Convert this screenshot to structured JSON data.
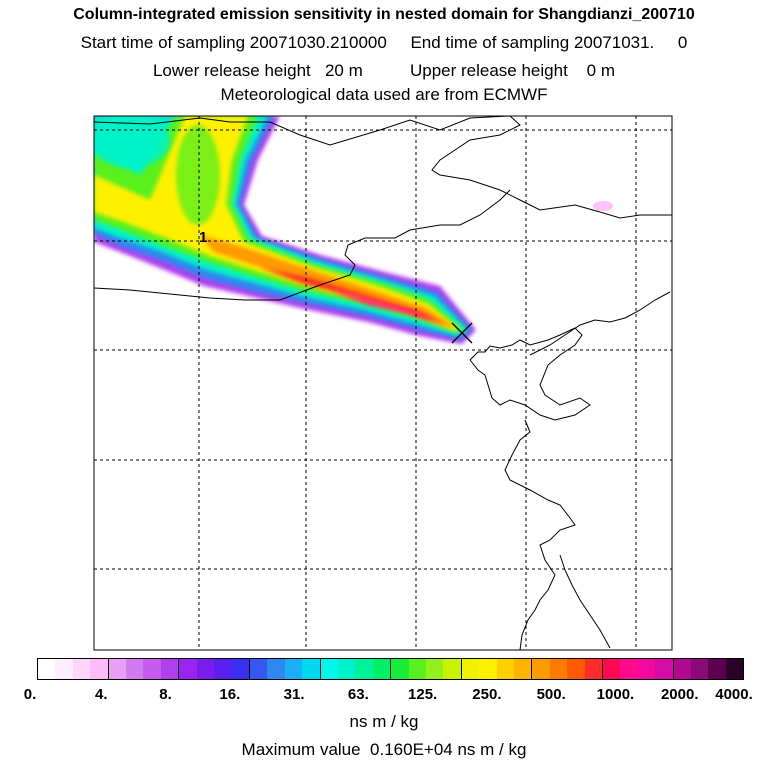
{
  "title": {
    "line1": "Column-integrated emission sensitivity in nested domain for Shangdianzi_200710",
    "line2": "Start time of sampling 20071030.210000     End time of sampling 20071031.     0",
    "line3": "Lower release height   20 m          Upper release height    0 m",
    "line4": "Meteorological data used are from ECMWF"
  },
  "map": {
    "day_marker": "1",
    "release_site_marker": "X"
  },
  "colorbar": {
    "ticks": [
      "0.",
      "4.",
      "8.",
      "16.",
      "31.",
      "63.",
      "125.",
      "250.",
      "500.",
      "1000.",
      "2000.",
      "4000."
    ],
    "colors": [
      "#ffffff",
      "#ffeeff",
      "#ffd6fc",
      "#ffbbf8",
      "#e7a0f3",
      "#d27af0",
      "#c85cef",
      "#b040ee",
      "#9a23f0",
      "#7a1cee",
      "#5a1ef0",
      "#3a2ff0",
      "#3458f0",
      "#2f87f0",
      "#1ab0f3",
      "#00d9f0",
      "#00f7ea",
      "#00f3c8",
      "#00f39b",
      "#00f06a",
      "#18ee3a",
      "#5af01e",
      "#92f11c",
      "#c7f200",
      "#eef100",
      "#fff000",
      "#ffd000",
      "#ffb400",
      "#ff9a00",
      "#ff7a00",
      "#ff5a00",
      "#ff2c2c",
      "#ff0a52",
      "#ff0a8c",
      "#f20aa0",
      "#d60aa6",
      "#b2078f",
      "#8a0a7a",
      "#5c0050",
      "#2a0028"
    ],
    "units": "ns m / kg"
  },
  "max_value": "Maximum value  0.160E+04 ns m / kg"
}
